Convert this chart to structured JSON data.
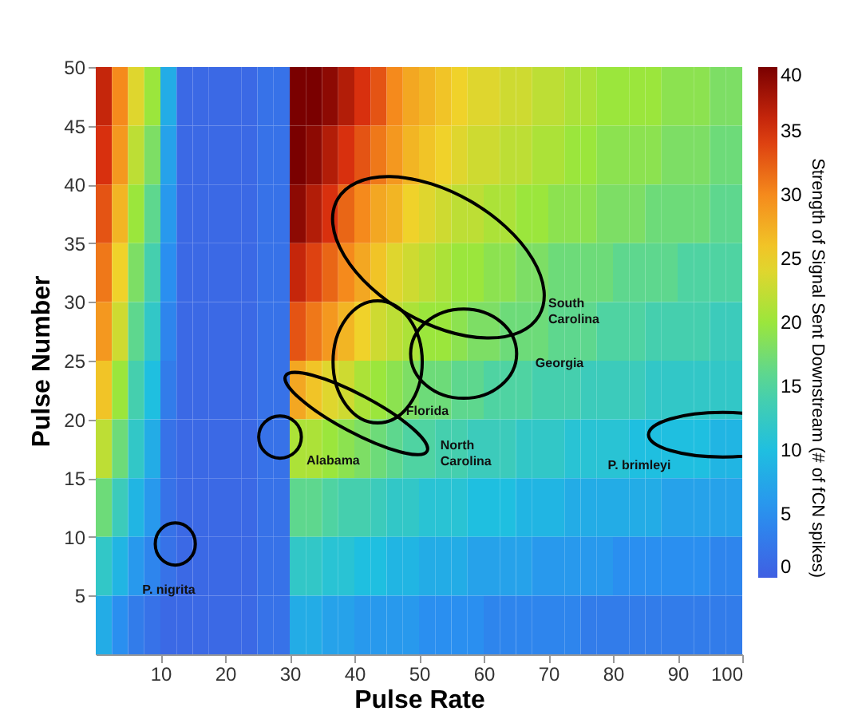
{
  "chart_data": {
    "type": "heatmap",
    "xlabel": "Pulse Rate",
    "ylabel": "Pulse Number",
    "clabel": "Strength of Signal Sent Downstream (# of fCN spikes)",
    "x": [
      1.25,
      3.75,
      6.25,
      8.75,
      11.25,
      13.75,
      16.25,
      18.75,
      21.25,
      23.75,
      26.25,
      28.75,
      31.25,
      33.75,
      36.25,
      38.75,
      41.25,
      43.75,
      46.25,
      48.75,
      51.25,
      53.75,
      56.25,
      58.75,
      61.25,
      63.75,
      66.25,
      68.75,
      71.25,
      73.75,
      76.25,
      78.75,
      81.25,
      83.75,
      86.25,
      88.75,
      91.25,
      93.75,
      96.25,
      98.75
    ],
    "y": [
      47.5,
      42.5,
      37.5,
      32.5,
      27.5,
      22.5,
      17.5,
      12.5,
      7.5,
      2.5
    ],
    "cells": [
      [
        36,
        30,
        24,
        20,
        8,
        1,
        1,
        1,
        1,
        1,
        2,
        2,
        40,
        40,
        39,
        37,
        35,
        33,
        30,
        28,
        27,
        26,
        25,
        24,
        24,
        23,
        23,
        22,
        22,
        21,
        21,
        20,
        20,
        20,
        20,
        19,
        19,
        19,
        18,
        18
      ],
      [
        35,
        29,
        22,
        18,
        7,
        1,
        1,
        1,
        1,
        1,
        2,
        2,
        40,
        39,
        37,
        35,
        33,
        31,
        29,
        27,
        26,
        25,
        24,
        23,
        23,
        22,
        22,
        21,
        21,
        20,
        20,
        19,
        19,
        19,
        19,
        18,
        18,
        18,
        17,
        17
      ],
      [
        33,
        27,
        20,
        16,
        6,
        1,
        1,
        1,
        1,
        1,
        2,
        2,
        39,
        37,
        35,
        32,
        30,
        28,
        27,
        25,
        24,
        23,
        22,
        22,
        21,
        21,
        20,
        20,
        19,
        19,
        19,
        18,
        18,
        18,
        17,
        17,
        17,
        17,
        16,
        16
      ],
      [
        31,
        25,
        18,
        14,
        5,
        1,
        1,
        1,
        1,
        1,
        2,
        2,
        36,
        34,
        32,
        30,
        28,
        26,
        24,
        23,
        22,
        21,
        20,
        20,
        19,
        19,
        18,
        18,
        17,
        17,
        17,
        17,
        16,
        16,
        16,
        16,
        15,
        15,
        15,
        15
      ],
      [
        29,
        23,
        16,
        12,
        4,
        1,
        1,
        1,
        1,
        1,
        2,
        2,
        33,
        31,
        29,
        27,
        25,
        23,
        22,
        21,
        20,
        20,
        19,
        18,
        18,
        17,
        17,
        17,
        16,
        16,
        16,
        15,
        15,
        15,
        14,
        14,
        14,
        14,
        13,
        13
      ],
      [
        26,
        20,
        14,
        10,
        3,
        1,
        1,
        1,
        1,
        1,
        2,
        2,
        28,
        26,
        24,
        23,
        21,
        20,
        19,
        18,
        17,
        17,
        16,
        16,
        15,
        15,
        15,
        14,
        14,
        14,
        13,
        13,
        13,
        13,
        12,
        12,
        12,
        12,
        12,
        12
      ],
      [
        22,
        17,
        12,
        8,
        2,
        1,
        1,
        1,
        1,
        1,
        2,
        2,
        21,
        21,
        20,
        19,
        18,
        17,
        16,
        15,
        15,
        14,
        14,
        13,
        13,
        13,
        12,
        12,
        12,
        11,
        11,
        11,
        11,
        10,
        10,
        10,
        10,
        10,
        9,
        9
      ],
      [
        17,
        13,
        9,
        6,
        2,
        1,
        1,
        1,
        1,
        1,
        2,
        2,
        16,
        16,
        15,
        14,
        14,
        13,
        12,
        12,
        11,
        11,
        11,
        10,
        10,
        10,
        9,
        9,
        9,
        8,
        8,
        8,
        8,
        8,
        8,
        7,
        7,
        7,
        7,
        7
      ],
      [
        12,
        9,
        6,
        4,
        2,
        1,
        1,
        1,
        1,
        1,
        2,
        2,
        12,
        12,
        11,
        11,
        10,
        10,
        9,
        9,
        8,
        8,
        8,
        7,
        7,
        7,
        7,
        6,
        6,
        6,
        6,
        6,
        5,
        5,
        5,
        5,
        5,
        5,
        4,
        4
      ],
      [
        8,
        5,
        3,
        2,
        1,
        1,
        1,
        1,
        1,
        1,
        2,
        2,
        8,
        8,
        7,
        7,
        6,
        6,
        6,
        6,
        5,
        5,
        5,
        5,
        4,
        4,
        4,
        4,
        4,
        4,
        3,
        3,
        3,
        3,
        3,
        3,
        3,
        3,
        3,
        3
      ]
    ],
    "xlim": [
      0,
      100
    ],
    "ylim": [
      0,
      50
    ],
    "xticks": [
      10,
      20,
      30,
      40,
      50,
      60,
      70,
      80,
      90,
      100
    ],
    "yticks": [
      5,
      10,
      15,
      20,
      25,
      30,
      35,
      40,
      45,
      50
    ],
    "clim": [
      0,
      40
    ],
    "cticks": [
      0,
      5,
      10,
      15,
      20,
      25,
      30,
      35,
      40
    ],
    "annotations": [
      "South\nCarolina",
      "Georgia",
      "Florida",
      "North\nCarolina",
      "Alabama",
      "P. brimleyi",
      "P. nigrita"
    ]
  }
}
